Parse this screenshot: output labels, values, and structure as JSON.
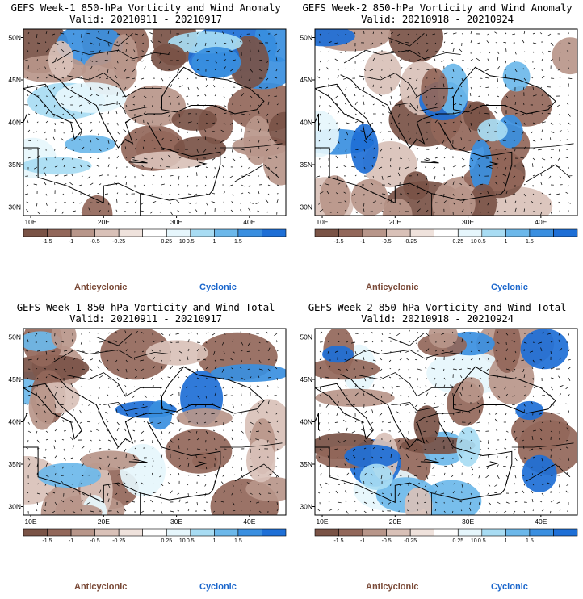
{
  "colors": {
    "anticyclonic_text": "#7a4a38",
    "cyclonic_text": "#1a66cc"
  },
  "legend": {
    "labels": [
      "-1.5",
      "-1",
      "-0.5",
      "-0.25",
      "0.25",
      "0.5",
      "1",
      "1.5"
    ],
    "scale_note": "10",
    "colors": [
      "#7a5346",
      "#92675a",
      "#b8968a",
      "#d9c1b8",
      "#efe2dc",
      "#ffffff",
      "#e6f6fc",
      "#a8dcf3",
      "#6cb8ea",
      "#3a8fe0",
      "#1e6fd6"
    ]
  },
  "tags": {
    "anticyclonic": "Anticyclonic",
    "cyclonic": "Cyclonic"
  },
  "chart_data": [
    {
      "type": "heatmap",
      "title": "GEFS Week-1 850-hPa Vorticity and Wind Anomaly",
      "subtitle": "Valid: 20210911 - 20210917",
      "x_ticks": [
        "10E",
        "20E",
        "30E",
        "40E"
      ],
      "y_ticks": [
        "30N",
        "35N",
        "40N",
        "45N",
        "50N"
      ],
      "xlim": [
        9,
        45
      ],
      "ylim": [
        29,
        51
      ],
      "seed": 11
    },
    {
      "type": "heatmap",
      "title": "GEFS Week-2 850-hPa Vorticity and Wind Anomaly",
      "subtitle": "Valid: 20210918 - 20210924",
      "x_ticks": [
        "10E",
        "20E",
        "30E",
        "40E"
      ],
      "y_ticks": [
        "30N",
        "35N",
        "40N",
        "45N",
        "50N"
      ],
      "xlim": [
        9,
        45
      ],
      "ylim": [
        29,
        51
      ],
      "seed": 23
    },
    {
      "type": "heatmap",
      "title": "GEFS Week-1 850-hPa Vorticity and Wind Total",
      "subtitle": "Valid: 20210911 - 20210917",
      "x_ticks": [
        "10E",
        "20E",
        "30E",
        "40E"
      ],
      "y_ticks": [
        "30N",
        "35N",
        "40N",
        "45N",
        "50N"
      ],
      "xlim": [
        9,
        45
      ],
      "ylim": [
        29,
        51
      ],
      "seed": 37
    },
    {
      "type": "heatmap",
      "title": "GEFS Week-2 850-hPa Vorticity and Wind Total",
      "subtitle": "Valid: 20210918 - 20210924",
      "x_ticks": [
        "10E",
        "20E",
        "30E",
        "40E"
      ],
      "y_ticks": [
        "30N",
        "35N",
        "40N",
        "45N",
        "50N"
      ],
      "xlim": [
        9,
        45
      ],
      "ylim": [
        29,
        51
      ],
      "seed": 53
    }
  ]
}
